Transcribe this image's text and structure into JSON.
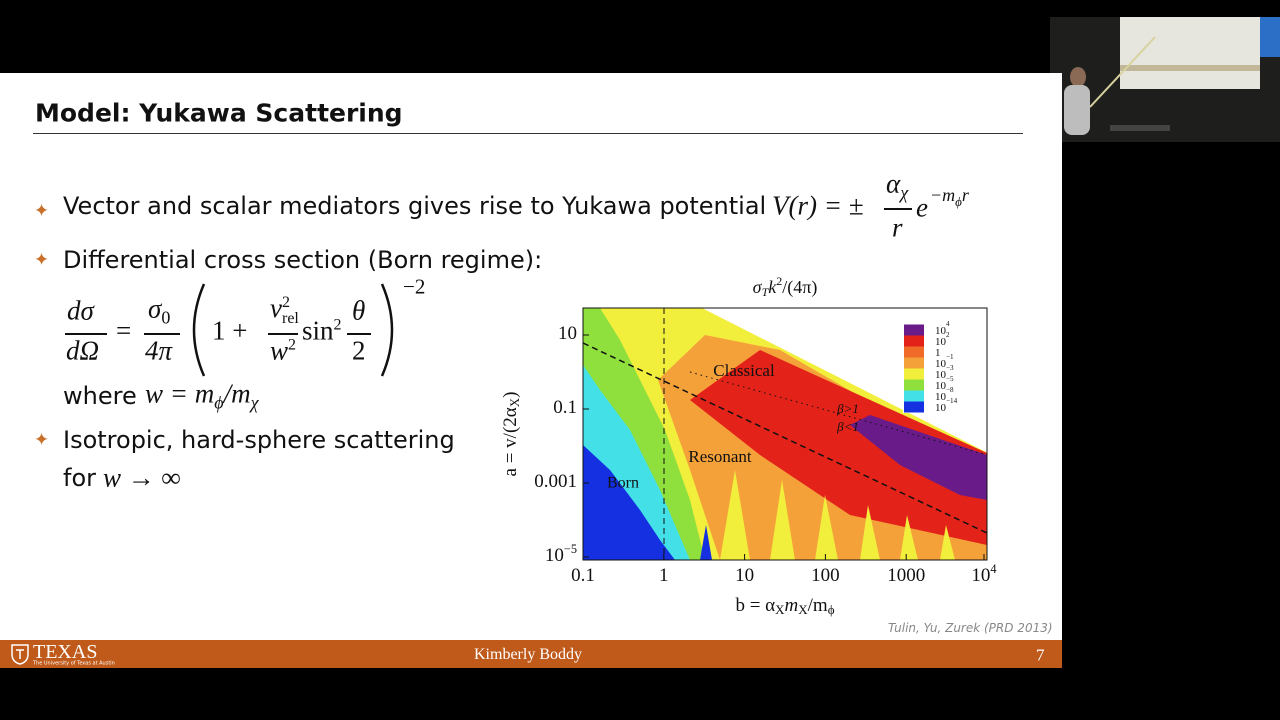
{
  "header": {
    "title": "Model: Yukawa Scattering"
  },
  "bullets": [
    {
      "text": "Vector and scalar mediators gives rise to Yukawa potential",
      "formula": {
        "lhs": "V(r) = ±",
        "num": "α",
        "num_sub": "χ",
        "den": "r",
        "base": "e",
        "exp": "−m",
        "exp_sub": "ϕ",
        "exp_tail": "r"
      }
    },
    {
      "text": "Differential cross section (Born regime):",
      "formula": {
        "lhs_num": "dσ",
        "lhs_den": "dΩ",
        "eq": "=",
        "f_num": "σ",
        "f_num_sub": "0",
        "f_den": "4π",
        "one": "1 +",
        "v": "v",
        "v_sup": "2",
        "v_sub": "rel",
        "w": "w",
        "w_sup": "2",
        "sin": "sin",
        "sin_sup": "2",
        "t_num": "θ",
        "t_den": "2",
        "power": "−2"
      },
      "where": "where",
      "where_formula": {
        "lhs": "w = m",
        "sub1": "ϕ",
        "slash": "/m",
        "sub2": "χ"
      }
    },
    {
      "text": "Isotropic, hard-sphere scattering",
      "line2": "for",
      "line2_math": "w → ∞"
    }
  ],
  "figure": {
    "title": {
      "main": "σ",
      "sub": "T",
      "tail": "k",
      "sup": "2",
      "end": "/(4π)"
    },
    "x_label": {
      "main": "b = α",
      "sub1": "X",
      "mid": "m",
      "sub2": "X",
      "slash": "/m",
      "sub3": "ϕ"
    },
    "y_label": {
      "main": "a = v/(2α",
      "sub": "X",
      "end": ")"
    },
    "x_ticks": [
      {
        "base": "0.1"
      },
      {
        "base": "1"
      },
      {
        "base": "10"
      },
      {
        "base": "100"
      },
      {
        "base": "1000"
      },
      {
        "base": "10",
        "exp": "4"
      }
    ],
    "y_ticks": [
      {
        "base": "10"
      },
      {
        "base": "0.1"
      },
      {
        "base": "0.001"
      },
      {
        "base": "10",
        "exp": "−5"
      }
    ],
    "regions": {
      "classical": "Classical",
      "resonant": "Resonant",
      "born": "Born",
      "beta_gt": "β>1",
      "beta_lt": "β<1"
    },
    "legend": [
      {
        "base": "10",
        "exp": "4",
        "color": "#6a1b8a"
      },
      {
        "base": "10",
        "exp": "2",
        "color": "#e32219"
      },
      {
        "base": "1",
        "color": "#f06a28"
      },
      {
        "base": "10",
        "exp": "−1",
        "color": "#f5a13a"
      },
      {
        "base": "10",
        "exp": "−3",
        "color": "#f2ee3c"
      },
      {
        "base": "10",
        "exp": "−5",
        "color": "#8fe03c"
      },
      {
        "base": "10",
        "exp": "−8",
        "color": "#43e0e8"
      },
      {
        "base": "10",
        "exp": "−14",
        "color": "#1530e0"
      }
    ]
  },
  "citation": "Tulin, Yu, Zurek (PRD 2013)",
  "footer": {
    "logo": "TEXAS",
    "logo_sub": "The University of Texas at Austin",
    "presenter": "Kimberly Boddy",
    "page": "7"
  }
}
